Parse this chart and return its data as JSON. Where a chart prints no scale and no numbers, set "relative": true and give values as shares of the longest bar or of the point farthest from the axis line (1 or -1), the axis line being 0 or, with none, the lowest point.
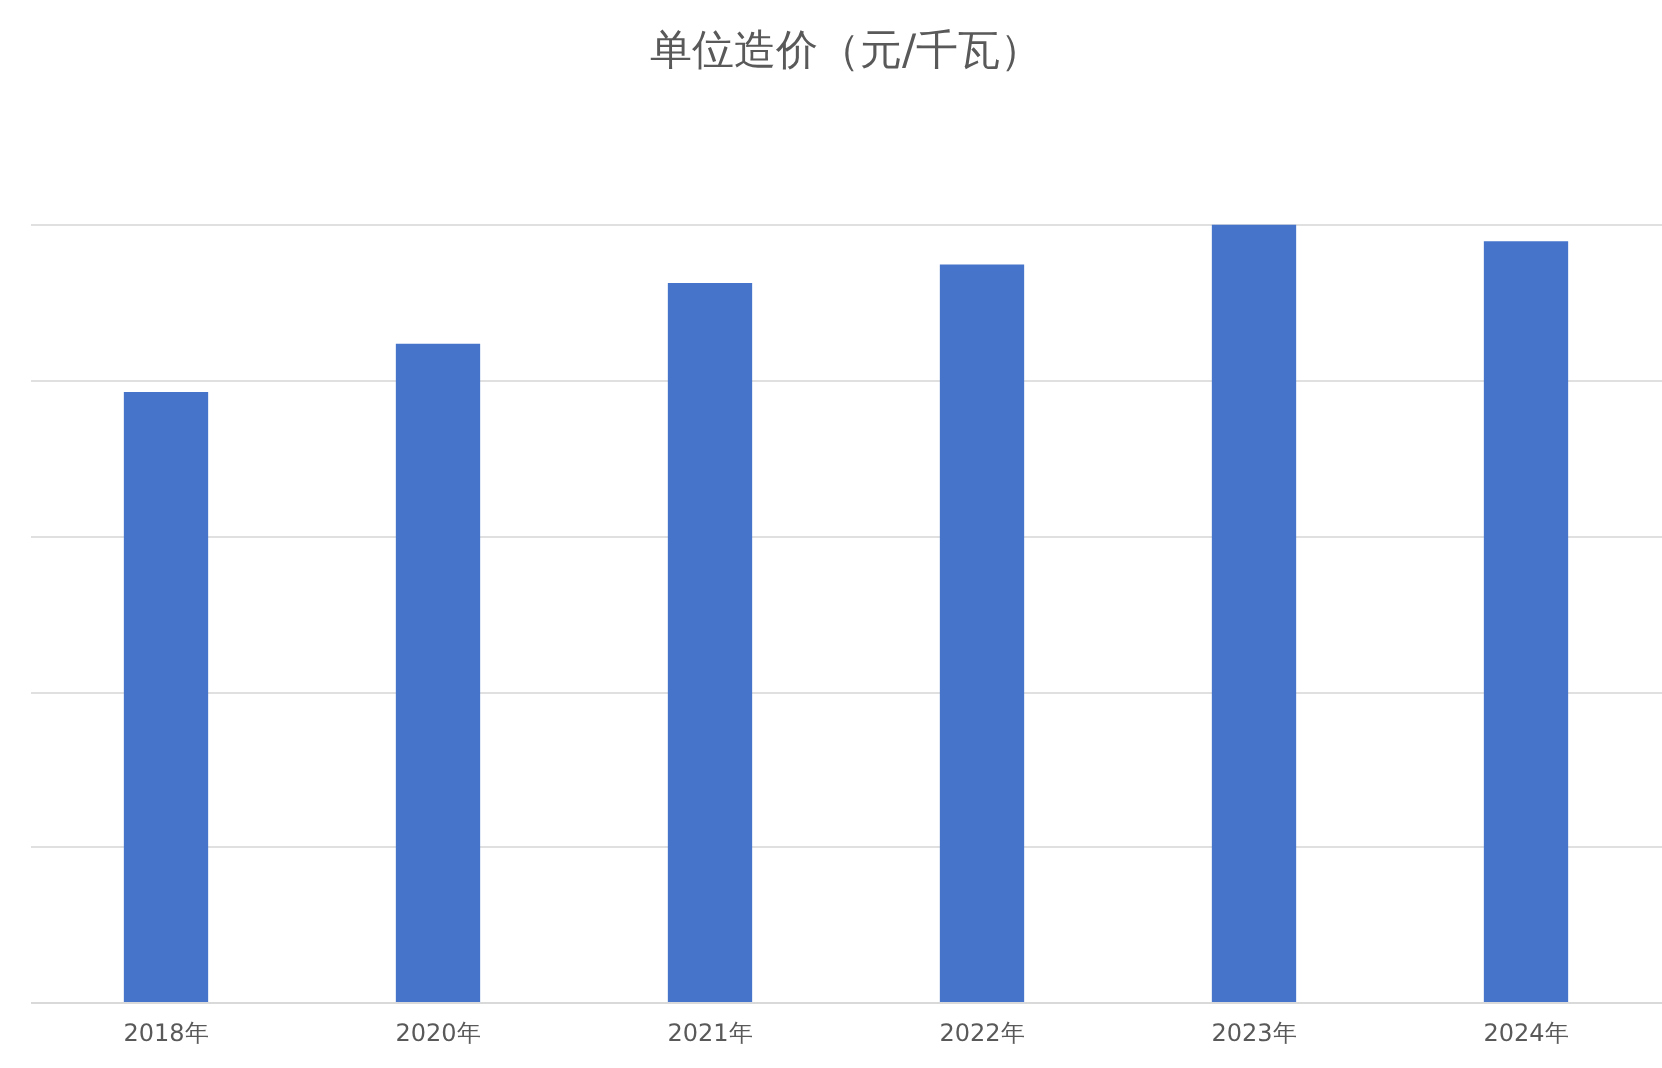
{
  "chart_data": {
    "type": "bar",
    "title": "单位造价（元/千瓦）",
    "categories": [
      "2018年",
      "2020年",
      "2021年",
      "2022年",
      "2023年",
      "2024年"
    ],
    "values": [
      0.785,
      0.847,
      0.925,
      0.949,
      1,
      0.979
    ],
    "color": "#4674ca",
    "relative": true,
    "grid": "y"
  }
}
